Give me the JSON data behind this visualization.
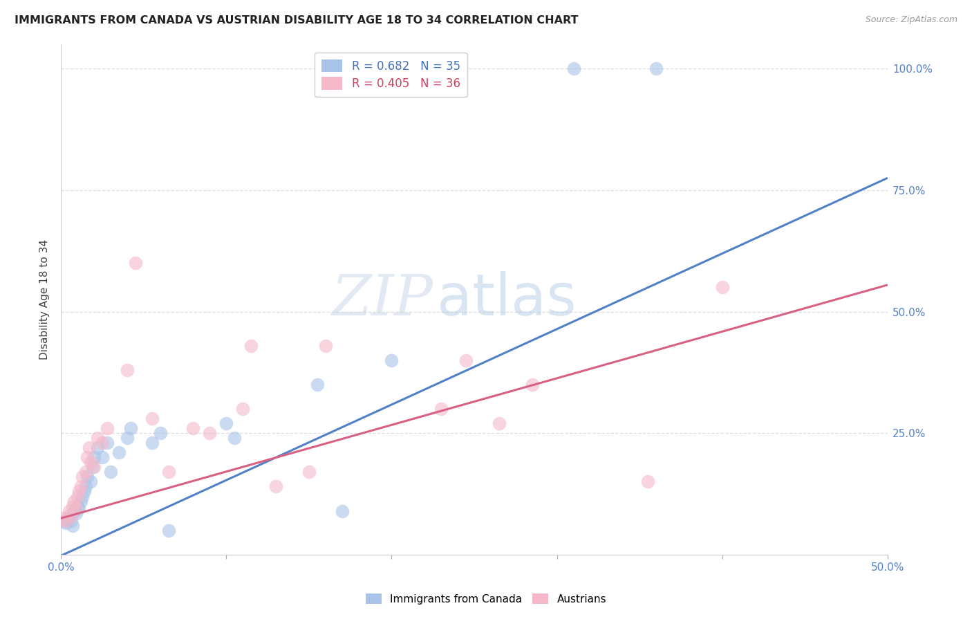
{
  "title": "IMMIGRANTS FROM CANADA VS AUSTRIAN DISABILITY AGE 18 TO 34 CORRELATION CHART",
  "source": "Source: ZipAtlas.com",
  "ylabel": "Disability Age 18 to 34",
  "xmin": 0.0,
  "xmax": 0.5,
  "ymin": 0.0,
  "ymax": 1.05,
  "legend_label1": "R = 0.682   N = 35",
  "legend_label2": "R = 0.405   N = 36",
  "legend_color1": "#a8c4e8",
  "legend_color2": "#f4b8c8",
  "line_color1": "#5080c8",
  "line_color2": "#d86080",
  "watermark_zip": "ZIP",
  "watermark_atlas": "atlas",
  "blue_scatter_x": [
    0.002,
    0.003,
    0.004,
    0.005,
    0.006,
    0.007,
    0.008,
    0.009,
    0.01,
    0.011,
    0.012,
    0.013,
    0.014,
    0.015,
    0.016,
    0.018,
    0.019,
    0.02,
    0.022,
    0.025,
    0.028,
    0.03,
    0.035,
    0.04,
    0.042,
    0.055,
    0.06,
    0.065,
    0.1,
    0.105,
    0.155,
    0.17,
    0.2,
    0.31,
    0.36
  ],
  "blue_scatter_y": [
    0.07,
    0.065,
    0.075,
    0.08,
    0.07,
    0.06,
    0.09,
    0.085,
    0.1,
    0.095,
    0.11,
    0.12,
    0.13,
    0.14,
    0.16,
    0.15,
    0.18,
    0.2,
    0.22,
    0.2,
    0.23,
    0.17,
    0.21,
    0.24,
    0.26,
    0.23,
    0.25,
    0.05,
    0.27,
    0.24,
    0.35,
    0.09,
    0.4,
    1.0,
    1.0
  ],
  "pink_scatter_x": [
    0.001,
    0.003,
    0.005,
    0.006,
    0.007,
    0.008,
    0.009,
    0.01,
    0.011,
    0.012,
    0.013,
    0.015,
    0.016,
    0.017,
    0.018,
    0.02,
    0.022,
    0.025,
    0.028,
    0.04,
    0.045,
    0.055,
    0.065,
    0.08,
    0.09,
    0.11,
    0.115,
    0.13,
    0.15,
    0.16,
    0.23,
    0.245,
    0.265,
    0.285,
    0.355,
    0.4
  ],
  "pink_scatter_y": [
    0.075,
    0.07,
    0.09,
    0.08,
    0.1,
    0.11,
    0.095,
    0.12,
    0.13,
    0.14,
    0.16,
    0.17,
    0.2,
    0.22,
    0.19,
    0.18,
    0.24,
    0.23,
    0.26,
    0.38,
    0.6,
    0.28,
    0.17,
    0.26,
    0.25,
    0.3,
    0.43,
    0.14,
    0.17,
    0.43,
    0.3,
    0.4,
    0.27,
    0.35,
    0.15,
    0.55
  ],
  "blue_line_x": [
    -0.005,
    0.5
  ],
  "blue_line_y": [
    -0.01,
    0.775
  ],
  "pink_line_x": [
    -0.005,
    0.5
  ],
  "pink_line_y": [
    0.07,
    0.555
  ],
  "grid_color": "#dddddd",
  "scatter_alpha": 0.6,
  "scatter_size": 200,
  "bottom_legend_label1": "Immigrants from Canada",
  "bottom_legend_label2": "Austrians"
}
